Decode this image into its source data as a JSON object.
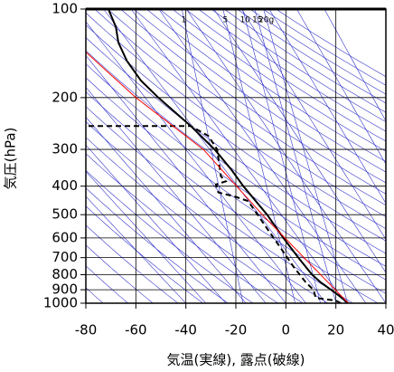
{
  "chart_data": {
    "type": "line",
    "x_label": "気温(実線), 露点(破線)",
    "y_label": "気圧(hPa)",
    "xlim": [
      -80,
      40
    ],
    "xticks": [
      -80,
      -60,
      -40,
      -20,
      0,
      20,
      40
    ],
    "ylim": [
      1000,
      100
    ],
    "yticks": [
      100,
      200,
      300,
      400,
      500,
      600,
      700,
      800,
      900,
      1000
    ],
    "log_y": true,
    "mixing_ratios": [
      1,
      5,
      10,
      15,
      {
        "value": 20,
        "label": "20g"
      }
    ],
    "mixing_label_pressure": 109,
    "series": [
      {
        "color": "#000000",
        "style": "solid",
        "x": [
          25,
          20,
          14,
          10.5,
          5,
          -1,
          -7.5,
          -17,
          -22,
          -28.5,
          -38,
          -51,
          -58,
          -63.6,
          -67,
          -68,
          -71
        ],
        "y": [
          1000,
          925,
          850,
          800,
          700,
          600,
          500,
          400,
          350,
          300,
          250,
          200,
          175,
          150,
          130,
          115,
          100
        ]
      },
      {
        "color": "#000000",
        "style": "dashed",
        "x": [
          22,
          20,
          12,
          11,
          8,
          3,
          -2,
          -8,
          -15,
          -20,
          -27,
          -28,
          -24,
          -26,
          -27.5,
          -31,
          -38,
          -80
        ],
        "y": [
          1000,
          980,
          960,
          900,
          850,
          750,
          650,
          550,
          450,
          435,
          420,
          395,
          385,
          370,
          300,
          270,
          250,
          250
        ]
      },
      {
        "color": "#ff0000",
        "style": "solid",
        "x": [
          25,
          -9.4,
          -33,
          -60,
          -80
        ],
        "y": [
          1000,
          500,
          300,
          200,
          140
        ]
      }
    ]
  }
}
